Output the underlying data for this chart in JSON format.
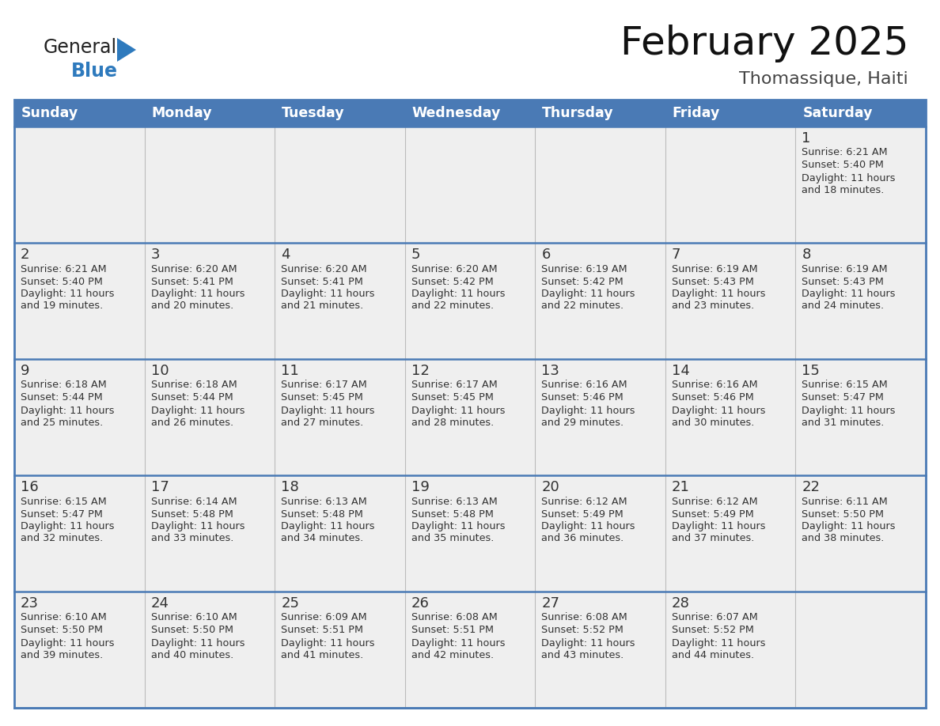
{
  "title": "February 2025",
  "subtitle": "Thomassique, Haiti",
  "days_of_week": [
    "Sunday",
    "Monday",
    "Tuesday",
    "Wednesday",
    "Thursday",
    "Friday",
    "Saturday"
  ],
  "header_bg": "#4a7ab5",
  "header_text": "#FFFFFF",
  "cell_bg": "#efefef",
  "cell_bg_empty": "#efefef",
  "day_num_color": "#333333",
  "text_color": "#333333",
  "line_color": "#4a7ab5",
  "border_color": "#4a7ab5",
  "logo_color_general": "#222222",
  "logo_color_blue": "#2e7abd",
  "logo_triangle_color": "#2e7abd",
  "calendar_data": [
    [
      null,
      null,
      null,
      null,
      null,
      null,
      {
        "day": 1,
        "sunrise": "6:21 AM",
        "sunset": "5:40 PM",
        "daylight": "11 hours",
        "daylight2": "and 18 minutes."
      }
    ],
    [
      {
        "day": 2,
        "sunrise": "6:21 AM",
        "sunset": "5:40 PM",
        "daylight": "11 hours",
        "daylight2": "and 19 minutes."
      },
      {
        "day": 3,
        "sunrise": "6:20 AM",
        "sunset": "5:41 PM",
        "daylight": "11 hours",
        "daylight2": "and 20 minutes."
      },
      {
        "day": 4,
        "sunrise": "6:20 AM",
        "sunset": "5:41 PM",
        "daylight": "11 hours",
        "daylight2": "and 21 minutes."
      },
      {
        "day": 5,
        "sunrise": "6:20 AM",
        "sunset": "5:42 PM",
        "daylight": "11 hours",
        "daylight2": "and 22 minutes."
      },
      {
        "day": 6,
        "sunrise": "6:19 AM",
        "sunset": "5:42 PM",
        "daylight": "11 hours",
        "daylight2": "and 22 minutes."
      },
      {
        "day": 7,
        "sunrise": "6:19 AM",
        "sunset": "5:43 PM",
        "daylight": "11 hours",
        "daylight2": "and 23 minutes."
      },
      {
        "day": 8,
        "sunrise": "6:19 AM",
        "sunset": "5:43 PM",
        "daylight": "11 hours",
        "daylight2": "and 24 minutes."
      }
    ],
    [
      {
        "day": 9,
        "sunrise": "6:18 AM",
        "sunset": "5:44 PM",
        "daylight": "11 hours",
        "daylight2": "and 25 minutes."
      },
      {
        "day": 10,
        "sunrise": "6:18 AM",
        "sunset": "5:44 PM",
        "daylight": "11 hours",
        "daylight2": "and 26 minutes."
      },
      {
        "day": 11,
        "sunrise": "6:17 AM",
        "sunset": "5:45 PM",
        "daylight": "11 hours",
        "daylight2": "and 27 minutes."
      },
      {
        "day": 12,
        "sunrise": "6:17 AM",
        "sunset": "5:45 PM",
        "daylight": "11 hours",
        "daylight2": "and 28 minutes."
      },
      {
        "day": 13,
        "sunrise": "6:16 AM",
        "sunset": "5:46 PM",
        "daylight": "11 hours",
        "daylight2": "and 29 minutes."
      },
      {
        "day": 14,
        "sunrise": "6:16 AM",
        "sunset": "5:46 PM",
        "daylight": "11 hours",
        "daylight2": "and 30 minutes."
      },
      {
        "day": 15,
        "sunrise": "6:15 AM",
        "sunset": "5:47 PM",
        "daylight": "11 hours",
        "daylight2": "and 31 minutes."
      }
    ],
    [
      {
        "day": 16,
        "sunrise": "6:15 AM",
        "sunset": "5:47 PM",
        "daylight": "11 hours",
        "daylight2": "and 32 minutes."
      },
      {
        "day": 17,
        "sunrise": "6:14 AM",
        "sunset": "5:48 PM",
        "daylight": "11 hours",
        "daylight2": "and 33 minutes."
      },
      {
        "day": 18,
        "sunrise": "6:13 AM",
        "sunset": "5:48 PM",
        "daylight": "11 hours",
        "daylight2": "and 34 minutes."
      },
      {
        "day": 19,
        "sunrise": "6:13 AM",
        "sunset": "5:48 PM",
        "daylight": "11 hours",
        "daylight2": "and 35 minutes."
      },
      {
        "day": 20,
        "sunrise": "6:12 AM",
        "sunset": "5:49 PM",
        "daylight": "11 hours",
        "daylight2": "and 36 minutes."
      },
      {
        "day": 21,
        "sunrise": "6:12 AM",
        "sunset": "5:49 PM",
        "daylight": "11 hours",
        "daylight2": "and 37 minutes."
      },
      {
        "day": 22,
        "sunrise": "6:11 AM",
        "sunset": "5:50 PM",
        "daylight": "11 hours",
        "daylight2": "and 38 minutes."
      }
    ],
    [
      {
        "day": 23,
        "sunrise": "6:10 AM",
        "sunset": "5:50 PM",
        "daylight": "11 hours",
        "daylight2": "and 39 minutes."
      },
      {
        "day": 24,
        "sunrise": "6:10 AM",
        "sunset": "5:50 PM",
        "daylight": "11 hours",
        "daylight2": "and 40 minutes."
      },
      {
        "day": 25,
        "sunrise": "6:09 AM",
        "sunset": "5:51 PM",
        "daylight": "11 hours",
        "daylight2": "and 41 minutes."
      },
      {
        "day": 26,
        "sunrise": "6:08 AM",
        "sunset": "5:51 PM",
        "daylight": "11 hours",
        "daylight2": "and 42 minutes."
      },
      {
        "day": 27,
        "sunrise": "6:08 AM",
        "sunset": "5:52 PM",
        "daylight": "11 hours",
        "daylight2": "and 43 minutes."
      },
      {
        "day": 28,
        "sunrise": "6:07 AM",
        "sunset": "5:52 PM",
        "daylight": "11 hours",
        "daylight2": "and 44 minutes."
      },
      null
    ]
  ]
}
